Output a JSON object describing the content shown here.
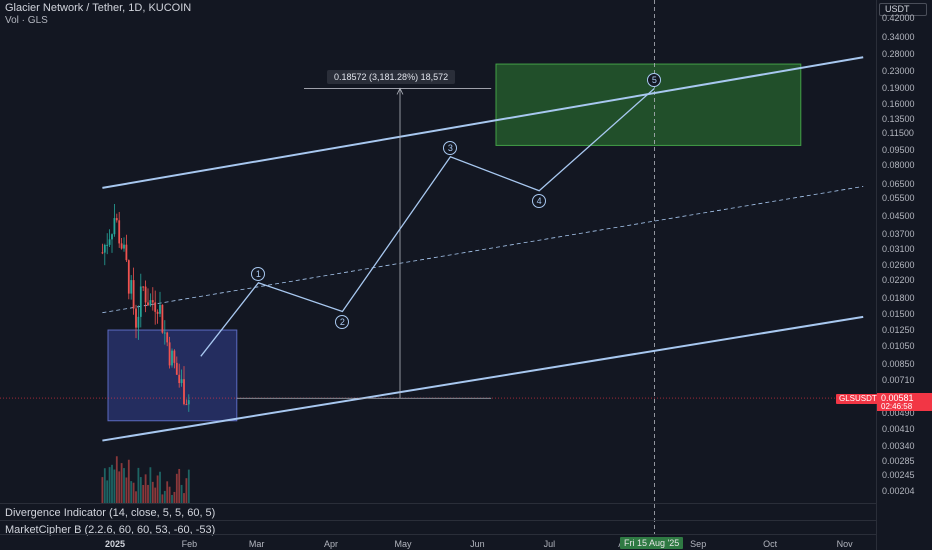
{
  "header": {
    "symbol_title": "Glacier Network / Tether, 1D, KUCOIN",
    "volume_label": "Vol · GLS"
  },
  "indicators": {
    "divergence": "Divergence Indicator (14, close, 5, 5, 60, 5)",
    "marketcipher": "MarketCipher B (2.2.6, 60, 60, 53, -60, -53)"
  },
  "price_axis": {
    "currency": "USDT",
    "ticks": [
      "0.42000",
      "0.34000",
      "0.28000",
      "0.23000",
      "0.19000",
      "0.16000",
      "0.13500",
      "0.11500",
      "0.09500",
      "0.08000",
      "0.06500",
      "0.05500",
      "0.04500",
      "0.03700",
      "0.03100",
      "0.02600",
      "0.02200",
      "0.01800",
      "0.01500",
      "0.01250",
      "0.01050",
      "0.00850",
      "0.00710",
      "0.00490",
      "0.00410",
      "0.00340",
      "0.00285",
      "0.00245",
      "0.00204"
    ]
  },
  "date_axis": {
    "ticks": [
      "2025",
      "Feb",
      "Mar",
      "Apr",
      "May",
      "Jun",
      "Jul",
      "Au",
      "Sep",
      "Oct",
      "Nov"
    ],
    "crosshair_date": "Fri 15 Aug '25"
  },
  "last_price": {
    "symbol": "GLSUSDT",
    "price": "0.00581",
    "countdown": "02:46:58"
  },
  "measure": {
    "label": "0.18572 (3,181.28%) 18,572"
  },
  "waves": [
    "1",
    "2",
    "3",
    "4",
    "5"
  ],
  "colors": {
    "background": "#131722",
    "channel": "#a8c8f0",
    "target_box": "#2e7d32",
    "entry_box": "#3949ab",
    "up_candle": "#26a69a",
    "down_candle": "#ef5350"
  },
  "chart_data": {
    "type": "candlestick",
    "symbol": "GLSUSDT",
    "exchange": "KUCOIN",
    "timeframe": "1D",
    "y_scale": "log",
    "ylim": [
      0.00204,
      0.42
    ],
    "x_range": [
      "2025-01-01",
      "2025-11-10"
    ],
    "price_series": [
      {
        "date": "2024-12-28",
        "close": 0.03
      },
      {
        "date": "2025-01-02",
        "close": 0.045
      },
      {
        "date": "2025-01-05",
        "close": 0.033
      },
      {
        "date": "2025-01-08",
        "close": 0.022
      },
      {
        "date": "2025-01-11",
        "close": 0.014
      },
      {
        "date": "2025-01-14",
        "close": 0.02
      },
      {
        "date": "2025-01-17",
        "close": 0.017
      },
      {
        "date": "2025-01-20",
        "close": 0.018
      },
      {
        "date": "2025-01-23",
        "close": 0.012
      },
      {
        "date": "2025-01-26",
        "close": 0.009
      },
      {
        "date": "2025-01-29",
        "close": 0.007
      },
      {
        "date": "2025-02-02",
        "close": 0.0058
      }
    ],
    "projected_wave_path": [
      {
        "label": "start",
        "date": "2025-02-07",
        "price": 0.0093
      },
      {
        "label": "1",
        "date": "2025-03-03",
        "price": 0.0213
      },
      {
        "label": "2",
        "date": "2025-04-07",
        "price": 0.0154
      },
      {
        "label": "3",
        "date": "2025-05-22",
        "price": 0.088
      },
      {
        "label": "4",
        "date": "2025-06-28",
        "price": 0.06
      },
      {
        "label": "5",
        "date": "2025-08-15",
        "price": 0.19
      }
    ],
    "measured_move": {
      "from": 0.0058,
      "to": 0.19,
      "change": 0.18572,
      "change_pct": 3181.28
    },
    "entry_zone": {
      "from_date": "2025-01-01",
      "to_date": "2025-02-22",
      "low": 0.0045,
      "high": 0.0125
    },
    "target_zone": {
      "from_date": "2025-06-10",
      "to_date": "2025-10-15",
      "low": 0.1,
      "high": 0.25
    },
    "channel": {
      "upper": [
        {
          "date": "2024-12-28",
          "price": 0.062
        },
        {
          "date": "2025-11-10",
          "price": 0.27
        }
      ],
      "lower": [
        {
          "date": "2024-12-28",
          "price": 0.0036
        },
        {
          "date": "2025-11-10",
          "price": 0.0145
        }
      ],
      "mid": [
        {
          "date": "2024-12-28",
          "price": 0.0152
        },
        {
          "date": "2025-11-10",
          "price": 0.063
        }
      ]
    }
  }
}
